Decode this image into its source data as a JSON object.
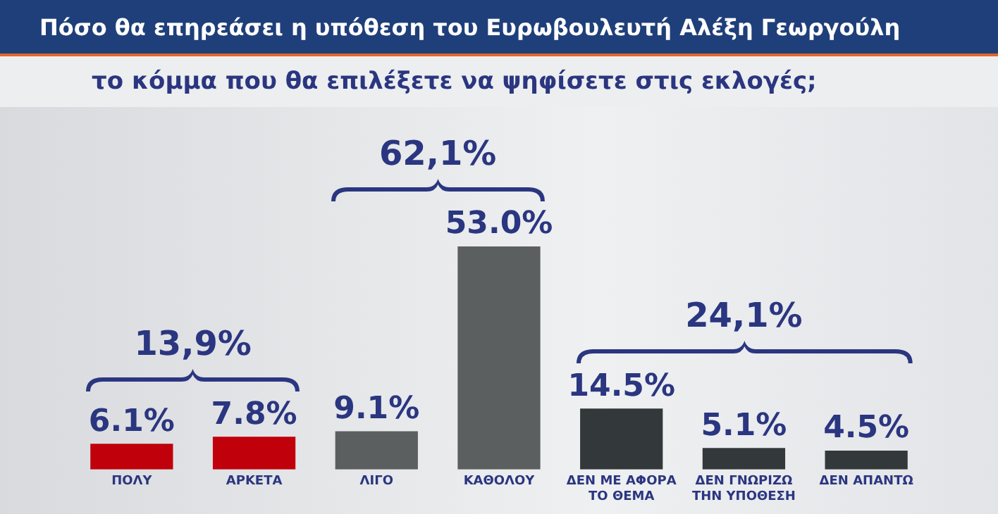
{
  "chart_data": {
    "type": "bar",
    "title": "Πόσο θα επηρεάσει η υπόθεση του Ευρωβουλευτή Αλέξη Γεωργούλη",
    "subtitle": "το κόμμα που θα επιλέξετε να ψηφίσετε στις εκλογές;",
    "categories": [
      "ΠΟΛΥ",
      "ΑΡΚΕΤΑ",
      "ΛΙΓΟ",
      "ΚΑΘΟΛΟΥ",
      "ΔΕΝ ΜΕ ΑΦΟΡΑ ΤΟ ΘΕΜΑ",
      "ΔΕΝ ΓΝΩΡΙΖΩ ΤΗΝ ΥΠΟΘΕΣΗ",
      "ΔΕΝ ΑΠΑΝΤΩ"
    ],
    "values": [
      6.1,
      7.8,
      9.1,
      53.0,
      14.5,
      5.1,
      4.5
    ],
    "value_labels": [
      "6.1%",
      "7.8%",
      "9.1%",
      "53.0%",
      "14.5%",
      "5.1%",
      "4.5%"
    ],
    "colors": [
      "#c0000b",
      "#c0000b",
      "#5b5f5f",
      "#5b5f5f",
      "#33383a",
      "#33383a",
      "#33383a"
    ],
    "annotations": [
      "13,9%",
      "62,1%",
      "24,1%"
    ],
    "grid": false,
    "legend": false
  }
}
